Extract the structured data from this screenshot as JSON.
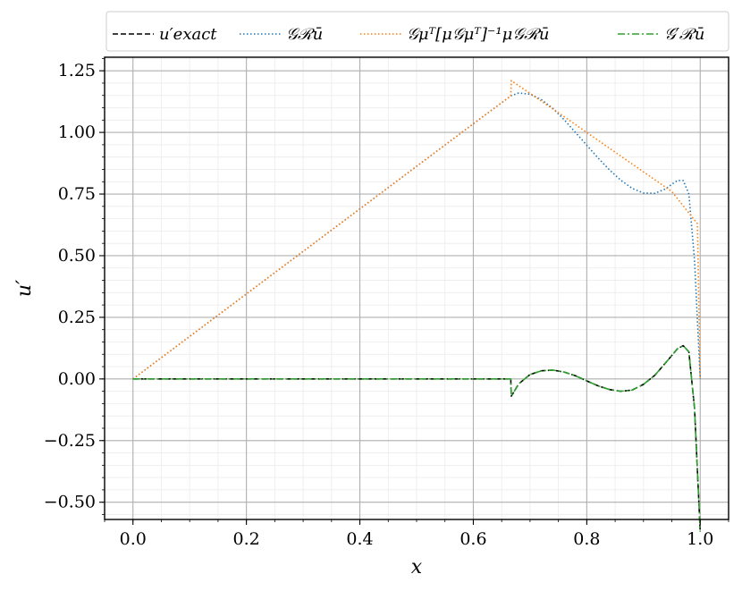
{
  "chart_data": {
    "type": "line",
    "xlabel": "x",
    "ylabel": "u′",
    "xlim": [
      -0.05,
      1.05
    ],
    "ylim": [
      -0.57,
      1.305
    ],
    "grid": true,
    "minor_grid": true,
    "legend_position": "top",
    "x_ticks": [
      {
        "value": 0.0,
        "label": "0.0"
      },
      {
        "value": 0.2,
        "label": "0.2"
      },
      {
        "value": 0.4,
        "label": "0.4"
      },
      {
        "value": 0.6,
        "label": "0.6"
      },
      {
        "value": 0.8,
        "label": "0.8"
      },
      {
        "value": 1.0,
        "label": "1.0"
      }
    ],
    "y_ticks": [
      {
        "value": 1.25,
        "label": "1.25"
      },
      {
        "value": 1.0,
        "label": "1.00"
      },
      {
        "value": 0.75,
        "label": "0.75"
      },
      {
        "value": 0.5,
        "label": "0.50"
      },
      {
        "value": 0.25,
        "label": "0.25"
      },
      {
        "value": 0.0,
        "label": "0.00"
      },
      {
        "value": -0.25,
        "label": "−0.25"
      },
      {
        "value": -0.5,
        "label": "−0.50"
      }
    ],
    "series": [
      {
        "name": "u′exact",
        "color": "#000000",
        "style": "dashed",
        "x": [
          0,
          0.1,
          0.2,
          0.3,
          0.4,
          0.5,
          0.6,
          0.666,
          0.667,
          0.68,
          0.7,
          0.72,
          0.74,
          0.76,
          0.78,
          0.8,
          0.82,
          0.84,
          0.86,
          0.88,
          0.9,
          0.92,
          0.94,
          0.96,
          0.97,
          0.98,
          0.99,
          1.0
        ],
        "y": [
          0,
          0,
          0,
          0,
          0,
          0,
          0,
          0,
          -0.07,
          -0.02,
          0.018,
          0.033,
          0.036,
          0.028,
          0.013,
          -0.008,
          -0.028,
          -0.043,
          -0.05,
          -0.045,
          -0.022,
          0.015,
          0.068,
          0.123,
          0.135,
          0.11,
          -0.12,
          -0.62
        ]
      },
      {
        "name": "𝒢ℛū",
        "color": "#1f77b4",
        "style": "dotted",
        "x": [
          0,
          0.2,
          0.4,
          0.6,
          0.666,
          0.68,
          0.7,
          0.72,
          0.74,
          0.76,
          0.78,
          0.8,
          0.82,
          0.84,
          0.86,
          0.88,
          0.9,
          0.92,
          0.94,
          0.95,
          0.96,
          0.97,
          0.98,
          0.99,
          1.0
        ],
        "y": [
          0,
          0.345,
          0.69,
          1.035,
          1.148,
          1.16,
          1.155,
          1.133,
          1.098,
          1.052,
          1.0,
          0.948,
          0.896,
          0.848,
          0.806,
          0.773,
          0.754,
          0.753,
          0.772,
          0.79,
          0.805,
          0.805,
          0.75,
          0.48,
          0.0
        ]
      },
      {
        "name": "𝒢μᵀ[μ𝒢μᵀ]⁻¹μ𝒢ℛū",
        "color": "#ff7f0e",
        "style": "dotted",
        "x": [
          0,
          0.2,
          0.4,
          0.6,
          0.666,
          0.667,
          0.75,
          0.85,
          0.9,
          0.95,
          0.995,
          1.0
        ],
        "y": [
          0,
          0.345,
          0.69,
          1.035,
          1.148,
          1.21,
          1.08,
          0.92,
          0.84,
          0.76,
          0.63,
          0.0
        ]
      },
      {
        "name": "𝒢′ℛū",
        "color": "#2ca02c",
        "style": "dashdot",
        "x": [
          0,
          0.1,
          0.2,
          0.3,
          0.4,
          0.5,
          0.6,
          0.666,
          0.667,
          0.68,
          0.7,
          0.72,
          0.74,
          0.76,
          0.78,
          0.8,
          0.82,
          0.84,
          0.86,
          0.88,
          0.9,
          0.92,
          0.94,
          0.96,
          0.97,
          0.98,
          0.99,
          1.0
        ],
        "y": [
          0,
          0,
          0,
          0,
          0,
          0,
          0,
          0,
          -0.07,
          -0.02,
          0.018,
          0.033,
          0.036,
          0.028,
          0.013,
          -0.008,
          -0.028,
          -0.043,
          -0.05,
          -0.045,
          -0.022,
          0.015,
          0.068,
          0.123,
          0.135,
          0.11,
          -0.12,
          -0.62
        ]
      }
    ]
  }
}
